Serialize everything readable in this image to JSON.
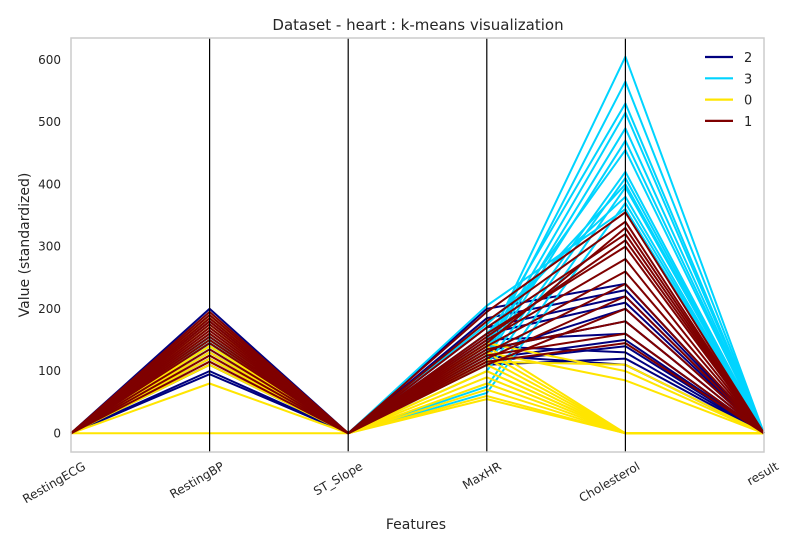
{
  "chart_data": {
    "type": "parallel_coordinates",
    "title": "Dataset - heart : k-means visualization",
    "xlabel": "Features",
    "ylabel": "Value (standardized)",
    "categories": [
      "RestingECG",
      "RestingBP",
      "ST_Slope",
      "MaxHR",
      "Cholesterol",
      "result"
    ],
    "ylim": [
      -30,
      635
    ],
    "yticks": [
      0,
      100,
      200,
      300,
      400,
      500,
      600
    ],
    "grid": false,
    "legend_position": "top-right",
    "legend_order": [
      "2",
      "3",
      "0",
      "1"
    ],
    "series": [
      {
        "name": "2",
        "color": "#00007f",
        "lines": [
          [
            0,
            200,
            0,
            200,
            240,
            0
          ],
          [
            0,
            190,
            0,
            185,
            230,
            0
          ],
          [
            0,
            180,
            0,
            170,
            220,
            0
          ],
          [
            0,
            160,
            0,
            150,
            160,
            0
          ],
          [
            0,
            150,
            0,
            125,
            110,
            0
          ],
          [
            0,
            140,
            0,
            140,
            130,
            0
          ],
          [
            0,
            130,
            0,
            120,
            150,
            0
          ],
          [
            0,
            120,
            0,
            130,
            200,
            0
          ],
          [
            0,
            110,
            0,
            115,
            140,
            0
          ],
          [
            0,
            100,
            0,
            110,
            120,
            0
          ],
          [
            0,
            95,
            0,
            135,
            180,
            0
          ],
          [
            0,
            170,
            0,
            160,
            210,
            0
          ]
        ]
      },
      {
        "name": "3",
        "color": "#00d4ff",
        "lines": [
          [
            0,
            150,
            0,
            140,
            605,
            0
          ],
          [
            0,
            145,
            0,
            135,
            565,
            0
          ],
          [
            0,
            155,
            0,
            150,
            530,
            0
          ],
          [
            0,
            140,
            0,
            130,
            515,
            0
          ],
          [
            0,
            150,
            0,
            125,
            490,
            0
          ],
          [
            0,
            135,
            0,
            120,
            470,
            0
          ],
          [
            0,
            145,
            0,
            145,
            455,
            0
          ],
          [
            0,
            150,
            0,
            110,
            420,
            0
          ],
          [
            0,
            140,
            0,
            100,
            410,
            0
          ],
          [
            0,
            150,
            0,
            160,
            400,
            0
          ],
          [
            0,
            145,
            0,
            175,
            380,
            0
          ],
          [
            0,
            140,
            0,
            75,
            395,
            0
          ],
          [
            0,
            150,
            0,
            65,
            370,
            0
          ],
          [
            0,
            155,
            0,
            205,
            360,
            0
          ]
        ]
      },
      {
        "name": "0",
        "color": "#ffe500",
        "lines": [
          [
            0,
            185,
            0,
            130,
            0,
            0
          ],
          [
            0,
            175,
            0,
            140,
            0,
            0
          ],
          [
            0,
            170,
            0,
            120,
            0,
            0
          ],
          [
            0,
            160,
            0,
            110,
            0,
            0
          ],
          [
            0,
            150,
            0,
            100,
            0,
            0
          ],
          [
            0,
            140,
            0,
            90,
            0,
            0
          ],
          [
            0,
            130,
            0,
            80,
            0,
            0
          ],
          [
            0,
            120,
            0,
            70,
            0,
            0
          ],
          [
            0,
            80,
            0,
            60,
            0,
            0
          ],
          [
            0,
            0,
            0,
            100,
            0,
            0
          ],
          [
            0,
            190,
            0,
            145,
            100,
            0
          ],
          [
            0,
            140,
            0,
            130,
            85,
            0
          ],
          [
            0,
            125,
            0,
            115,
            110,
            0
          ],
          [
            0,
            110,
            0,
            55,
            0,
            0
          ]
        ]
      },
      {
        "name": "1",
        "color": "#7f0000",
        "lines": [
          [
            0,
            195,
            0,
            195,
            355,
            0
          ],
          [
            0,
            185,
            0,
            180,
            340,
            0
          ],
          [
            0,
            175,
            0,
            170,
            320,
            0
          ],
          [
            0,
            165,
            0,
            160,
            300,
            0
          ],
          [
            0,
            155,
            0,
            150,
            280,
            0
          ],
          [
            0,
            145,
            0,
            140,
            260,
            0
          ],
          [
            0,
            135,
            0,
            130,
            240,
            0
          ],
          [
            0,
            125,
            0,
            120,
            220,
            0
          ],
          [
            0,
            115,
            0,
            110,
            200,
            0
          ],
          [
            0,
            190,
            0,
            135,
            180,
            0
          ],
          [
            0,
            180,
            0,
            125,
            160,
            0
          ],
          [
            0,
            170,
            0,
            115,
            145,
            0
          ],
          [
            0,
            160,
            0,
            145,
            330,
            0
          ],
          [
            0,
            150,
            0,
            155,
            310,
            0
          ]
        ]
      }
    ]
  }
}
